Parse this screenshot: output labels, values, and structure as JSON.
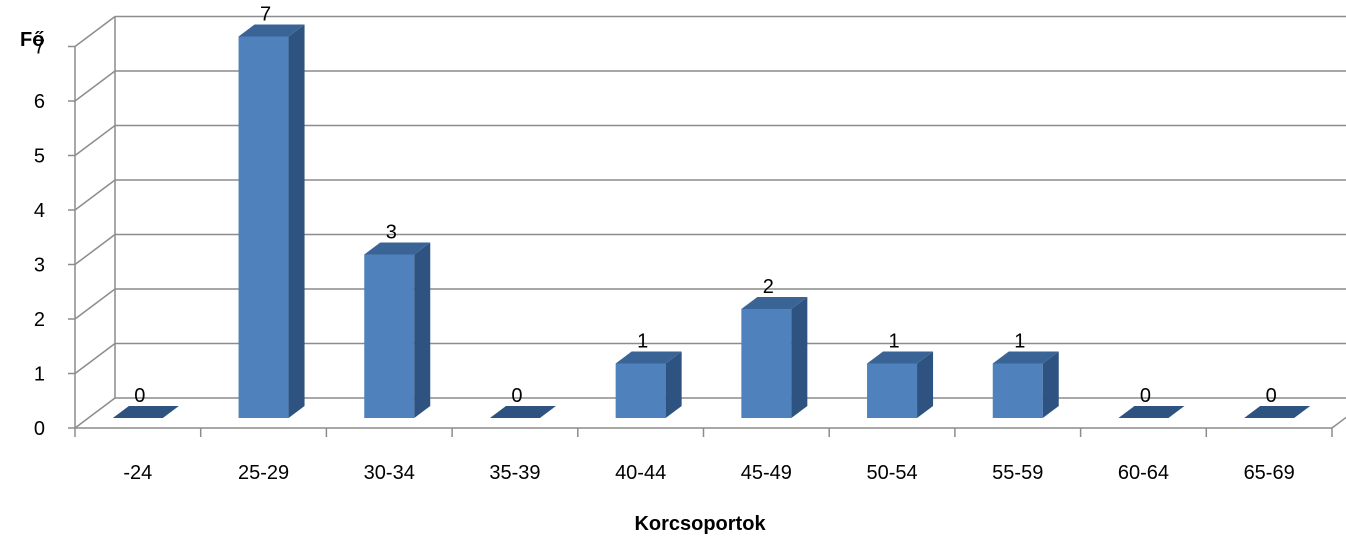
{
  "chart_data": {
    "type": "bar",
    "style": "3d-column",
    "categories": [
      "-24",
      "25-29",
      "30-34",
      "35-39",
      "40-44",
      "45-49",
      "50-54",
      "55-59",
      "60-64",
      "65-69"
    ],
    "values": [
      0,
      7,
      3,
      0,
      1,
      2,
      1,
      1,
      0,
      0
    ],
    "title": "",
    "xlabel": "Korcsoportok",
    "ylabel": "Fő",
    "ylim": [
      0,
      7
    ],
    "yticks": [
      "0",
      "1",
      "2",
      "3",
      "4",
      "5",
      "6",
      "7"
    ],
    "grid": true,
    "legend": "none",
    "data_labels": true,
    "colors": {
      "bar_front": "#4F81BD",
      "bar_side": "#2F5380",
      "bar_top": "#3B6496",
      "grid": "#8C8C8C",
      "axis": "#8C8C8C"
    }
  }
}
